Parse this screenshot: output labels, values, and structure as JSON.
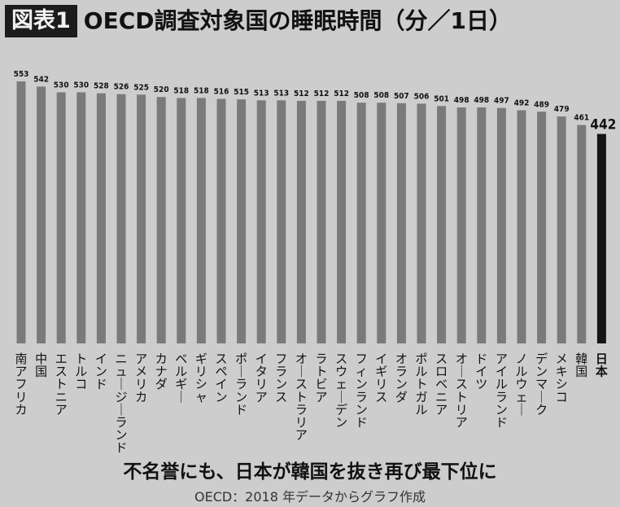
{
  "header": {
    "badge": "図表1",
    "title": "OECD調査対象国の睡眠時間（分／1日）"
  },
  "subtitle": "不名誉にも、日本が韓国を抜き再び最下位に",
  "source": "OECD：2018 年データからグラフ作成",
  "colors": {
    "bar": "#7a7a7a",
    "highlight": "#151515"
  },
  "chart_data": {
    "type": "bar",
    "title": "OECD調査対象国の睡眠時間（分／1日）",
    "ylabel": "",
    "xlabel": "",
    "ylim": [
      0,
      553
    ],
    "grid": false,
    "legend": "none",
    "categories": [
      "南アフリカ",
      "中国",
      "エストニア",
      "トルコ",
      "インド",
      "ニュージーランド",
      "アメリカ",
      "カナダ",
      "ベルギー",
      "ギリシャ",
      "スペイン",
      "ポーランド",
      "イタリア",
      "フランス",
      "オーストラリア",
      "ラトビア",
      "スウェーデン",
      "フィンランド",
      "イギリス",
      "オランダ",
      "ポルトガル",
      "スロベニア",
      "オーストリア",
      "ドイツ",
      "アイルランド",
      "ノルウェー",
      "デンマーク",
      "メキシコ",
      "韓国",
      "日本"
    ],
    "values": [
      553,
      542,
      530,
      530,
      528,
      526,
      525,
      520,
      518,
      518,
      516,
      515,
      513,
      513,
      512,
      512,
      512,
      508,
      508,
      507,
      506,
      501,
      498,
      498,
      497,
      492,
      489,
      479,
      461,
      442
    ],
    "highlight": "日本"
  }
}
